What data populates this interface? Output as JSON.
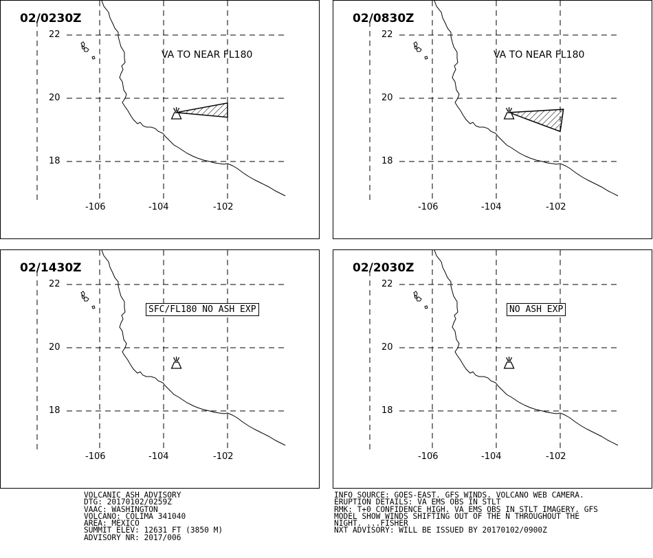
{
  "panels": [
    {
      "time": "02/0230Z",
      "label": "VA TO NEAR FL180",
      "label_boxed": false,
      "ash_polygon": [
        [
          -103.6,
          19.55
        ],
        [
          -102.0,
          19.85
        ],
        [
          -102.0,
          19.4
        ]
      ]
    },
    {
      "time": "02/0830Z",
      "label": "VA TO NEAR FL180",
      "label_boxed": false,
      "ash_polygon": [
        [
          -103.6,
          19.55
        ],
        [
          -101.9,
          19.65
        ],
        [
          -102.0,
          18.95
        ]
      ]
    },
    {
      "time": "02/1430Z",
      "label": "SFC/FL180 NO ASH EXP",
      "label_boxed": true,
      "ash_polygon": null
    },
    {
      "time": "02/2030Z",
      "label": "NO ASH EXP",
      "label_boxed": true,
      "ash_polygon": null
    }
  ],
  "map": {
    "lat_labels": [
      "22",
      "20",
      "18"
    ],
    "lon_labels": [
      "-106",
      "-104",
      "-102"
    ],
    "volcano": [
      -103.6,
      19.5
    ]
  },
  "footer": {
    "left": [
      "VOLCANIC ASH ADVISORY",
      "DTG: 20170102/0259Z",
      "VAAC: WASHINGTON",
      "VOLCANO: COLIMA 341040",
      "AREA: MEXICO",
      "SUMMIT ELEV: 12631 FT (3850 M)",
      "ADVISORY NR: 2017/006"
    ],
    "right": [
      "INFO SOURCE: GOES-EAST. GFS WINDS. VOLCANO WEB CAMERA.",
      "ERUPTION DETAILS: VA EMS OBS IN STLT",
      "RMK: T+0 CONFIDENCE HIGH. VA EMS OBS IN STLT IMAGERY. GFS",
      "MODEL SHOW WINDS SHIFTING OUT OF THE N THROUGHOUT THE",
      "NIGHT. ...FISHER",
      "NXT ADVISORY: WILL BE ISSUED BY 20170102/0900Z"
    ]
  }
}
